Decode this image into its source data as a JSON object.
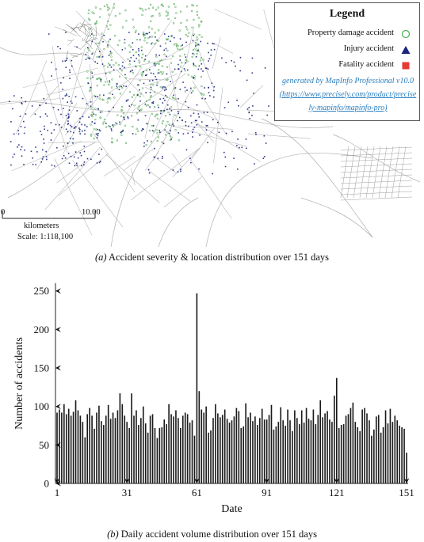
{
  "map_panel": {
    "legend": {
      "title": "Legend",
      "items": [
        {
          "label": "Property damage accident",
          "symbol": "circle-outline-icon",
          "color": "#4caf50"
        },
        {
          "label": "Injury accident",
          "symbol": "triangle-icon",
          "color": "#1a237e"
        },
        {
          "label": "Fatality accident",
          "symbol": "square-icon",
          "color": "#e53935"
        }
      ],
      "credit_line1": "generated by MapInfo Professional v10.0",
      "credit_line2": "(https://www.precisely.com/product/precise",
      "credit_line3": "ly-mapinfo/mapinfo-pro)"
    },
    "scale": {
      "start": "0",
      "end": "10.00",
      "unit": "kilometers",
      "ratio": "Scale: 1:118,100"
    },
    "colors": {
      "roads": "#9e9e9e",
      "property": "#43a047",
      "injury": "#1a237e"
    }
  },
  "caption_a_prefix": "(a)",
  "caption_a_text": " Accident severity & location distribution over 151 days",
  "caption_b_prefix": "(b)",
  "caption_b_text": " Daily accident volume distribution over 151 days",
  "chart_data": {
    "type": "bar",
    "xlabel": "Date",
    "ylabel": "Number of accidents",
    "ylim": [
      0,
      260
    ],
    "yticks": [
      0,
      50,
      100,
      150,
      200,
      250
    ],
    "xticks": [
      1,
      31,
      61,
      91,
      121,
      151
    ],
    "x": [
      1,
      2,
      3,
      4,
      5,
      6,
      7,
      8,
      9,
      10,
      11,
      12,
      13,
      14,
      15,
      16,
      17,
      18,
      19,
      20,
      21,
      22,
      23,
      24,
      25,
      26,
      27,
      28,
      29,
      30,
      31,
      32,
      33,
      34,
      35,
      36,
      37,
      38,
      39,
      40,
      41,
      42,
      43,
      44,
      45,
      46,
      47,
      48,
      49,
      50,
      51,
      52,
      53,
      54,
      55,
      56,
      57,
      58,
      59,
      60,
      61,
      62,
      63,
      64,
      65,
      66,
      67,
      68,
      69,
      70,
      71,
      72,
      73,
      74,
      75,
      76,
      77,
      78,
      79,
      80,
      81,
      82,
      83,
      84,
      85,
      86,
      87,
      88,
      89,
      90,
      91,
      92,
      93,
      94,
      95,
      96,
      97,
      98,
      99,
      100,
      101,
      102,
      103,
      104,
      105,
      106,
      107,
      108,
      109,
      110,
      111,
      112,
      113,
      114,
      115,
      116,
      117,
      118,
      119,
      120,
      121,
      122,
      123,
      124,
      125,
      126,
      127,
      128,
      129,
      130,
      131,
      132,
      133,
      134,
      135,
      136,
      137,
      138,
      139,
      140,
      141,
      142,
      143,
      144,
      145,
      146,
      147,
      148,
      149,
      150,
      151
    ],
    "values": [
      92,
      96,
      92,
      103,
      90,
      97,
      88,
      93,
      108,
      95,
      88,
      80,
      60,
      90,
      98,
      88,
      71,
      92,
      101,
      81,
      76,
      88,
      102,
      84,
      92,
      85,
      95,
      117,
      103,
      88,
      80,
      72,
      117,
      88,
      95,
      76,
      85,
      100,
      78,
      66,
      88,
      90,
      72,
      59,
      72,
      73,
      83,
      77,
      103,
      90,
      87,
      95,
      85,
      72,
      88,
      92,
      90,
      79,
      82,
      62,
      247,
      120,
      96,
      92,
      100,
      66,
      69,
      85,
      103,
      91,
      86,
      89,
      96,
      84,
      79,
      82,
      87,
      98,
      94,
      72,
      74,
      104,
      86,
      92,
      81,
      87,
      76,
      85,
      97,
      83,
      83,
      89,
      102,
      70,
      74,
      80,
      99,
      82,
      75,
      96,
      82,
      68,
      95,
      85,
      77,
      95,
      79,
      98,
      84,
      82,
      96,
      77,
      89,
      108,
      86,
      91,
      94,
      83,
      80,
      114,
      137,
      72,
      76,
      77,
      88,
      90,
      98,
      105,
      80,
      73,
      68,
      96,
      98,
      91,
      82,
      62,
      70,
      87,
      89,
      66,
      73,
      95,
      78,
      97,
      80,
      88,
      82,
      75,
      73,
      71,
      40
    ]
  }
}
